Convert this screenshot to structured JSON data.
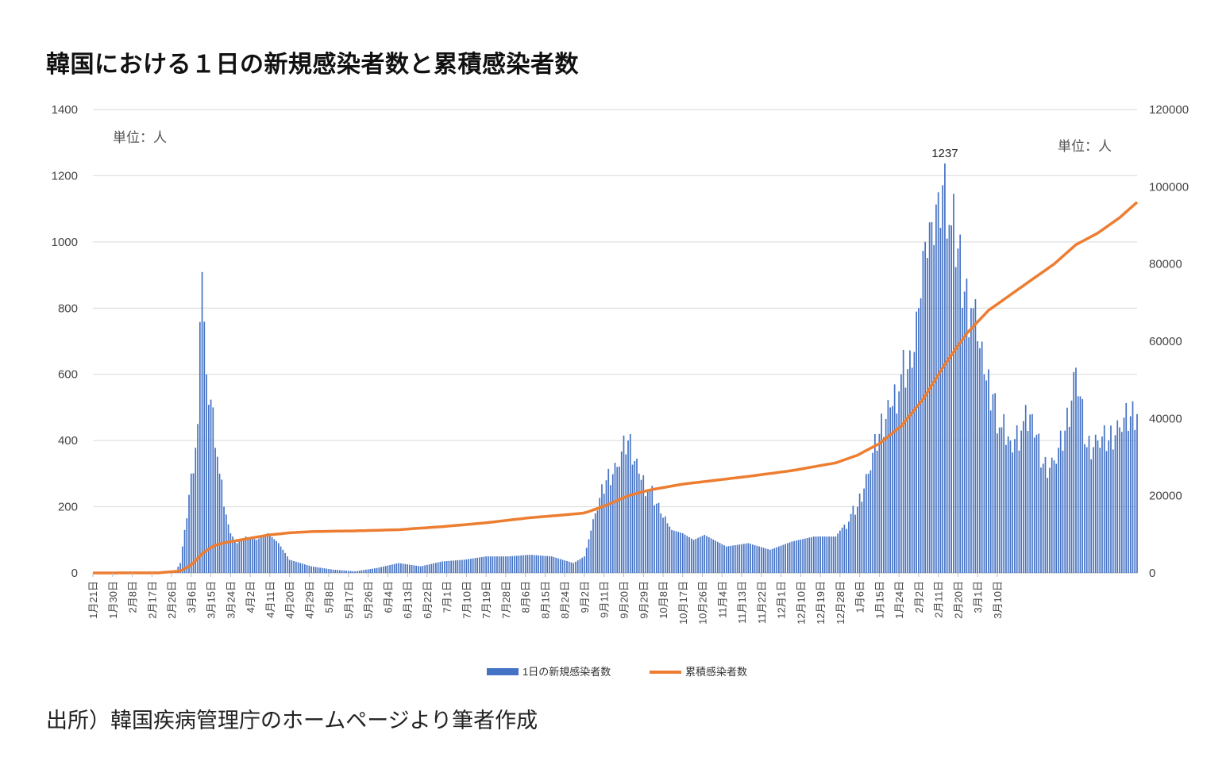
{
  "title": "韓国における１日の新規感染者数と累積感染者数",
  "source": "出所）韓国疾病管理庁のホームページより筆者作成",
  "chart_data": {
    "type": "bar+line",
    "title": "韓国における１日の新規感染者数と累積感染者数",
    "unit_left": "単位：人",
    "unit_right": "単位：人",
    "y_left": {
      "min": 0,
      "max": 1400,
      "ticks": [
        "0",
        "200",
        "400",
        "600",
        "800",
        "1000",
        "1200",
        "1400"
      ]
    },
    "y_right": {
      "min": 0,
      "max": 120000,
      "ticks": [
        "0",
        "20000",
        "40000",
        "60000",
        "80000",
        "100000",
        "120000"
      ]
    },
    "x_tick_labels": [
      "1月21日",
      "1月30日",
      "2月8日",
      "2月17日",
      "2月26日",
      "3月6日",
      "3月15日",
      "3月24日",
      "4月2日",
      "4月11日",
      "4月20日",
      "4月29日",
      "5月8日",
      "5月17日",
      "5月26日",
      "6月4日",
      "6月13日",
      "6月22日",
      "7月1日",
      "7月10日",
      "7月19日",
      "7月28日",
      "8月6日",
      "8月15日",
      "8月24日",
      "9月2日",
      "9月11日",
      "9月20日",
      "9月29日",
      "10月8日",
      "10月17日",
      "10月26日",
      "11月4日",
      "11月13日",
      "11月22日",
      "12月1日",
      "12月10日",
      "12月19日",
      "12月28日",
      "1月6日",
      "1月15日",
      "1月24日",
      "2月2日",
      "2月11日",
      "2月20日",
      "3月1日",
      "3月10日"
    ],
    "peak_label": "1237",
    "series": [
      {
        "name": "1日の新規感染者数",
        "axis": "left",
        "color": "#4472C4",
        "keypoints": [
          [
            0,
            0
          ],
          [
            30,
            0
          ],
          [
            35,
            2
          ],
          [
            38,
            8
          ],
          [
            40,
            30
          ],
          [
            42,
            130
          ],
          [
            45,
            300
          ],
          [
            48,
            450
          ],
          [
            50,
            909
          ],
          [
            52,
            600
          ],
          [
            55,
            500
          ],
          [
            58,
            300
          ],
          [
            60,
            200
          ],
          [
            63,
            120
          ],
          [
            66,
            90
          ],
          [
            70,
            110
          ],
          [
            75,
            100
          ],
          [
            80,
            120
          ],
          [
            85,
            90
          ],
          [
            90,
            40
          ],
          [
            95,
            30
          ],
          [
            100,
            20
          ],
          [
            110,
            10
          ],
          [
            120,
            5
          ],
          [
            130,
            15
          ],
          [
            140,
            30
          ],
          [
            150,
            20
          ],
          [
            160,
            35
          ],
          [
            170,
            40
          ],
          [
            180,
            50
          ],
          [
            190,
            50
          ],
          [
            200,
            55
          ],
          [
            210,
            50
          ],
          [
            215,
            40
          ],
          [
            220,
            30
          ],
          [
            225,
            50
          ],
          [
            230,
            180
          ],
          [
            235,
            280
          ],
          [
            240,
            320
          ],
          [
            245,
            400
          ],
          [
            250,
            300
          ],
          [
            255,
            250
          ],
          [
            260,
            180
          ],
          [
            265,
            130
          ],
          [
            270,
            120
          ],
          [
            275,
            100
          ],
          [
            280,
            115
          ],
          [
            290,
            80
          ],
          [
            300,
            90
          ],
          [
            310,
            70
          ],
          [
            320,
            95
          ],
          [
            330,
            110
          ],
          [
            340,
            110
          ],
          [
            350,
            200
          ],
          [
            355,
            300
          ],
          [
            360,
            420
          ],
          [
            365,
            500
          ],
          [
            370,
            600
          ],
          [
            375,
            620
          ],
          [
            378,
            800
          ],
          [
            381,
            1000
          ],
          [
            384,
            1060
          ],
          [
            387,
            1150
          ],
          [
            390,
            1237
          ],
          [
            393,
            1050
          ],
          [
            396,
            980
          ],
          [
            399,
            850
          ],
          [
            402,
            800
          ],
          [
            405,
            700
          ],
          [
            408,
            600
          ],
          [
            412,
            540
          ],
          [
            416,
            440
          ],
          [
            420,
            400
          ],
          [
            425,
            430
          ],
          [
            430,
            480
          ],
          [
            435,
            330
          ],
          [
            440,
            340
          ],
          [
            445,
            430
          ],
          [
            450,
            620
          ],
          [
            455,
            380
          ],
          [
            460,
            400
          ],
          [
            465,
            400
          ],
          [
            470,
            440
          ],
          [
            478,
            480
          ]
        ]
      },
      {
        "name": "累積感染者数",
        "axis": "right",
        "color": "#ED7D31",
        "keypoints": [
          [
            0,
            0
          ],
          [
            30,
            30
          ],
          [
            40,
            500
          ],
          [
            45,
            2000
          ],
          [
            50,
            5000
          ],
          [
            55,
            7000
          ],
          [
            60,
            7800
          ],
          [
            70,
            8800
          ],
          [
            80,
            9800
          ],
          [
            90,
            10400
          ],
          [
            100,
            10700
          ],
          [
            120,
            10900
          ],
          [
            140,
            11200
          ],
          [
            160,
            12000
          ],
          [
            180,
            13000
          ],
          [
            200,
            14300
          ],
          [
            215,
            15000
          ],
          [
            225,
            15500
          ],
          [
            235,
            17500
          ],
          [
            245,
            20000
          ],
          [
            255,
            21500
          ],
          [
            270,
            23000
          ],
          [
            300,
            25000
          ],
          [
            320,
            26500
          ],
          [
            340,
            28500
          ],
          [
            350,
            30500
          ],
          [
            360,
            33500
          ],
          [
            370,
            38000
          ],
          [
            380,
            45000
          ],
          [
            390,
            54000
          ],
          [
            400,
            62000
          ],
          [
            410,
            68000
          ],
          [
            420,
            72000
          ],
          [
            430,
            76000
          ],
          [
            440,
            80000
          ],
          [
            450,
            85000
          ],
          [
            460,
            88000
          ],
          [
            470,
            92000
          ],
          [
            478,
            96000
          ]
        ]
      }
    ],
    "x_range_days": [
      0,
      478
    ],
    "legend": [
      "1日の新規感染者数",
      "累積感染者数"
    ],
    "legend_position": "bottom",
    "grid": true
  },
  "colors": {
    "bar": "#4472C4",
    "line": "#ED7D31",
    "grid": "#d9d9d9",
    "axis_text": "#444444"
  }
}
